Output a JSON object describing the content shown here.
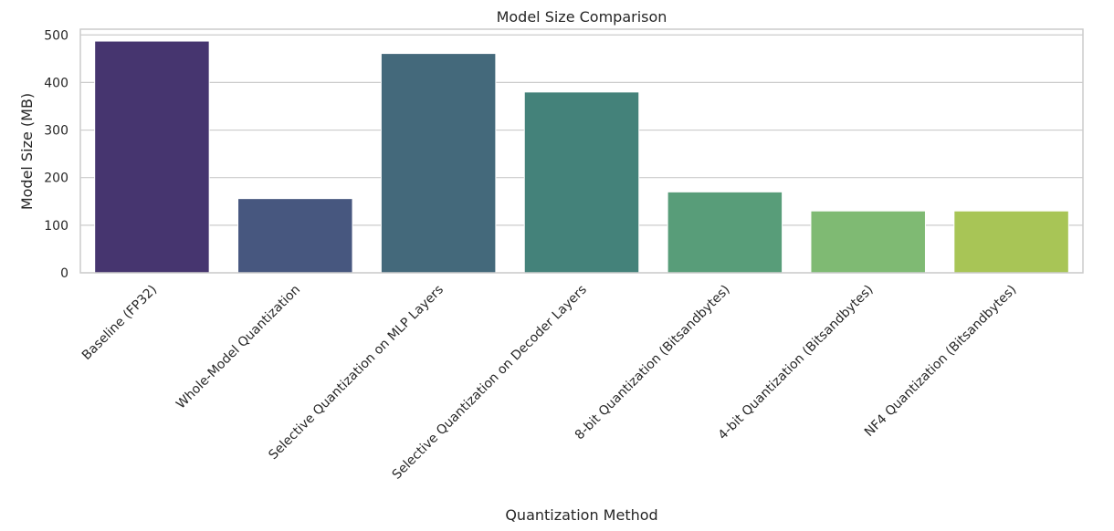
{
  "chart_data": {
    "type": "bar",
    "title": "Model Size Comparison",
    "xlabel": "Quantization Method",
    "ylabel": "Model Size (MB)",
    "categories": [
      "Baseline (FP32)",
      "Whole-Model Quantization",
      "Selective Quantization on MLP Layers",
      "Selective Quantization on Decoder Layers",
      "8-bit Quantization (Bitsandbytes)",
      "4-bit Quantization (Bitsandbytes)",
      "NF4 Quantization (Bitsandbytes)"
    ],
    "values": [
      487,
      156,
      461,
      380,
      170,
      130,
      130
    ],
    "ylim": [
      0,
      512
    ],
    "yticks": [
      0,
      100,
      200,
      300,
      400,
      500
    ],
    "ytick_labels": [
      "0",
      "100",
      "200",
      "300",
      "400",
      "500"
    ],
    "grid": true,
    "colors": [
      "#46356f",
      "#47577f",
      "#44697b",
      "#44827a",
      "#589d79",
      "#7fba73",
      "#a8c556"
    ]
  }
}
